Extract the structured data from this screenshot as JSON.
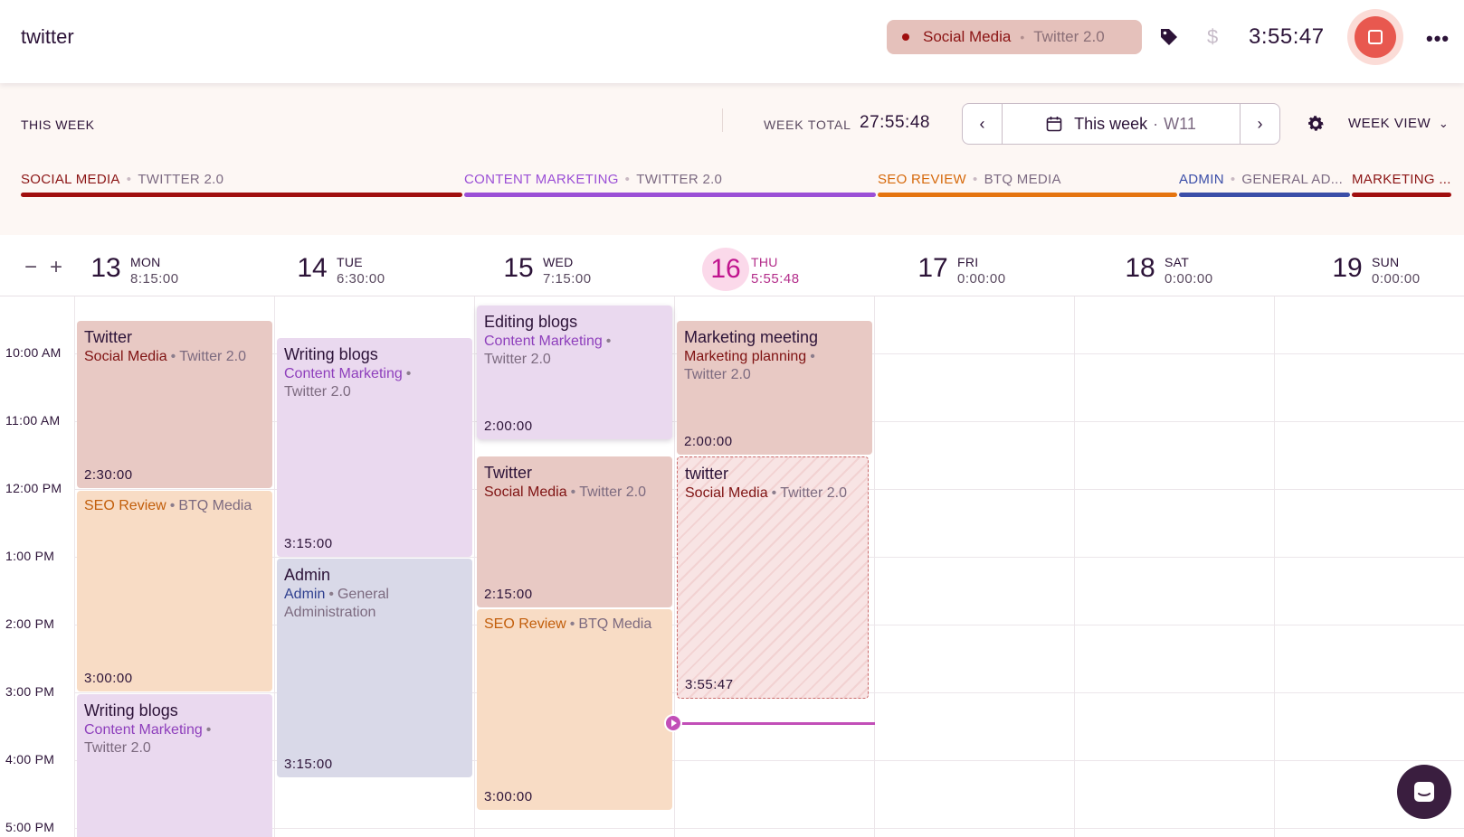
{
  "top": {
    "description": "twitter",
    "chip": {
      "project": "Social Media",
      "client": "Twitter 2.0",
      "color": "#a00e0e"
    },
    "timer": "3:55:47",
    "icons": [
      "tag-icon",
      "dollar-icon",
      "stop-icon",
      "more-icon"
    ],
    "accent": "#e8584f"
  },
  "week": {
    "label": "THIS WEEK",
    "total_label": "WEEK TOTAL",
    "total_value": "27:55:48",
    "range_label": "This week",
    "week_number": "W11",
    "view": "WEEK VIEW"
  },
  "projects": [
    {
      "project": "SOCIAL MEDIA",
      "client": "TWITTER 2.0",
      "color": "#a00e0e"
    },
    {
      "project": "CONTENT MARKETING",
      "client": "TWITTER 2.0",
      "color": "#9b4fd6"
    },
    {
      "project": "SEO REVIEW",
      "client": "BTQ MEDIA",
      "color": "#e5740f"
    },
    {
      "project": "ADMIN",
      "client": "GENERAL AD...",
      "color": "#3b4ea8"
    },
    {
      "project": "MARKETING ...",
      "client": "",
      "color": "#a00e0e"
    }
  ],
  "days": [
    {
      "num": "13",
      "name": "MON",
      "dur": "8:15:00"
    },
    {
      "num": "14",
      "name": "TUE",
      "dur": "6:30:00"
    },
    {
      "num": "15",
      "name": "WED",
      "dur": "7:15:00"
    },
    {
      "num": "16",
      "name": "THU",
      "dur": "5:55:48",
      "today": true
    },
    {
      "num": "17",
      "name": "FRI",
      "dur": "0:00:00"
    },
    {
      "num": "18",
      "name": "SAT",
      "dur": "0:00:00"
    },
    {
      "num": "19",
      "name": "SUN",
      "dur": "0:00:00"
    }
  ],
  "times": [
    "10:00 AM",
    "11:00 AM",
    "12:00 PM",
    "1:00 PM",
    "2:00 PM",
    "3:00 PM",
    "4:00 PM",
    "5:00 PM"
  ],
  "events": {
    "mon": [
      {
        "title": "Twitter",
        "project": "Social Media",
        "client": "Twitter 2.0",
        "duration": "2:30:00"
      },
      {
        "title": "",
        "project": "SEO Review",
        "client": "BTQ Media",
        "duration": "3:00:00"
      },
      {
        "title": "Writing blogs",
        "project": "Content Marketing",
        "client": "Twitter 2.0",
        "duration": ""
      }
    ],
    "tue": [
      {
        "title": "Writing blogs",
        "project": "Content Marketing",
        "client": "Twitter 2.0",
        "duration": "3:15:00"
      },
      {
        "title": "Admin",
        "project": "Admin",
        "client": "General Administration",
        "duration": "3:15:00"
      }
    ],
    "wed": [
      {
        "title": "Editing blogs",
        "project": "Content Marketing",
        "client": "Twitter 2.0",
        "duration": "2:00:00"
      },
      {
        "title": "Twitter",
        "project": "Social Media",
        "client": "Twitter 2.0",
        "duration": "2:15:00"
      },
      {
        "title": "",
        "project": "SEO Review",
        "client": "BTQ Media",
        "duration": "3:00:00"
      }
    ],
    "thu": [
      {
        "title": "Marketing meeting",
        "project": "Marketing planning",
        "client": "Twitter 2.0",
        "duration": "2:00:00"
      },
      {
        "title": "twitter",
        "project": "Social Media",
        "client": "Twitter 2.0",
        "duration": "3:55:47",
        "running": true
      }
    ]
  }
}
